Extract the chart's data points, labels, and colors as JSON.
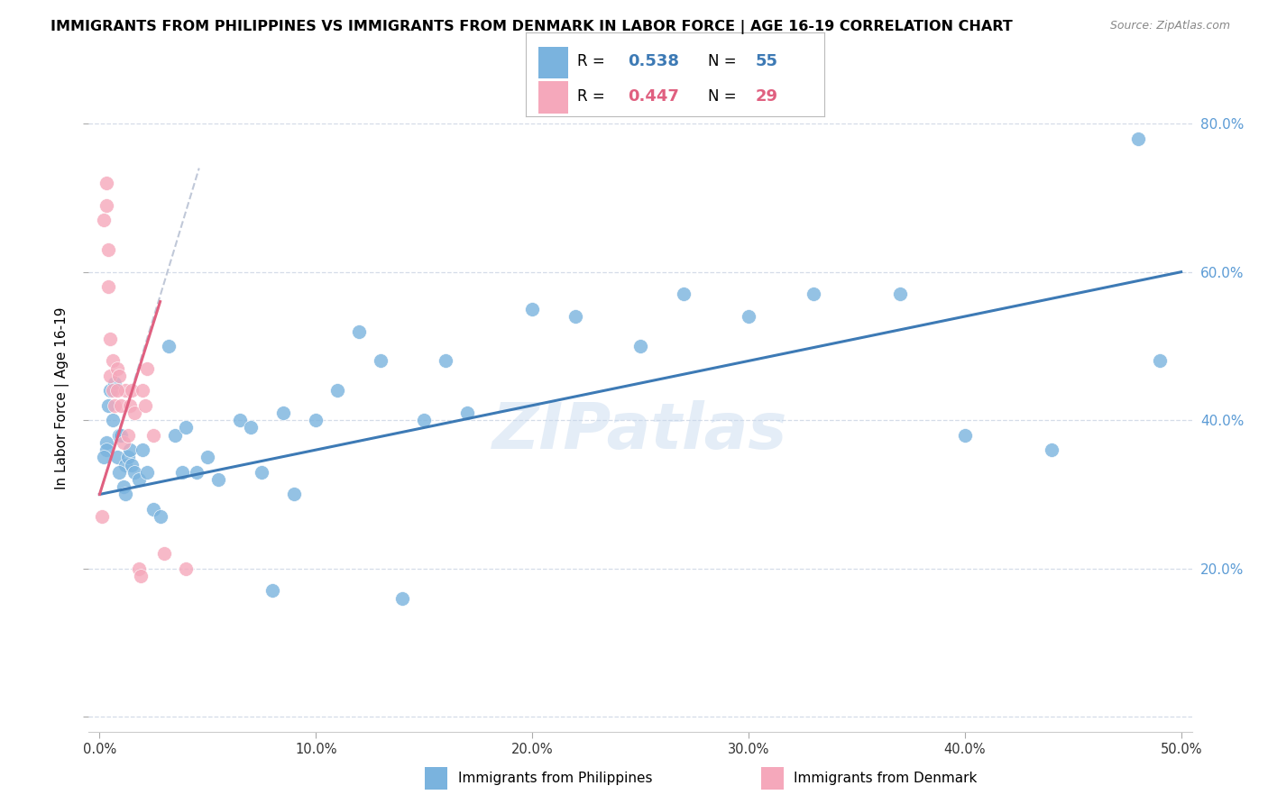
{
  "title": "IMMIGRANTS FROM PHILIPPINES VS IMMIGRANTS FROM DENMARK IN LABOR FORCE | AGE 16-19 CORRELATION CHART",
  "source": "Source: ZipAtlas.com",
  "ylabel": "In Labor Force | Age 16-19",
  "x_label_philippines": "Immigrants from Philippines",
  "x_label_denmark": "Immigrants from Denmark",
  "legend_blue_r": "0.538",
  "legend_blue_n": "55",
  "legend_pink_r": "0.447",
  "legend_pink_n": "29",
  "watermark": "ZIPatlas",
  "xlim_min": -0.005,
  "xlim_max": 0.505,
  "ylim_min": -0.02,
  "ylim_max": 0.88,
  "blue_color": "#7ab3de",
  "pink_color": "#f5a8bb",
  "blue_line_color": "#3d7ab5",
  "pink_line_color": "#e06080",
  "gray_dash_color": "#c0c8d8",
  "grid_color": "#d5dce8",
  "right_tick_color": "#5b9bd5",
  "yticks": [
    0.0,
    0.2,
    0.4,
    0.6,
    0.8
  ],
  "ytick_labels_right": [
    "",
    "20.0%",
    "40.0%",
    "60.0%",
    "80.0%"
  ],
  "xticks": [
    0.0,
    0.1,
    0.2,
    0.3,
    0.4,
    0.5
  ],
  "xtick_labels": [
    "0.0%",
    "10.0%",
    "20.0%",
    "30.0%",
    "40.0%",
    "50.0%"
  ],
  "blue_x": [
    0.003,
    0.004,
    0.005,
    0.006,
    0.008,
    0.009,
    0.01,
    0.011,
    0.012,
    0.013,
    0.014,
    0.015,
    0.016,
    0.018,
    0.02,
    0.022,
    0.025,
    0.028,
    0.032,
    0.035,
    0.038,
    0.04,
    0.045,
    0.05,
    0.055,
    0.065,
    0.07,
    0.075,
    0.08,
    0.085,
    0.09,
    0.1,
    0.11,
    0.12,
    0.13,
    0.14,
    0.15,
    0.16,
    0.17,
    0.2,
    0.22,
    0.25,
    0.27,
    0.3,
    0.33,
    0.37,
    0.4,
    0.44,
    0.48,
    0.49,
    0.003,
    0.007,
    0.009,
    0.012,
    0.002
  ],
  "blue_y": [
    0.37,
    0.42,
    0.44,
    0.4,
    0.35,
    0.38,
    0.38,
    0.31,
    0.34,
    0.35,
    0.36,
    0.34,
    0.33,
    0.32,
    0.36,
    0.33,
    0.28,
    0.27,
    0.5,
    0.38,
    0.33,
    0.39,
    0.33,
    0.35,
    0.32,
    0.4,
    0.39,
    0.33,
    0.17,
    0.41,
    0.3,
    0.4,
    0.44,
    0.52,
    0.48,
    0.16,
    0.4,
    0.48,
    0.41,
    0.55,
    0.54,
    0.5,
    0.57,
    0.54,
    0.57,
    0.57,
    0.38,
    0.36,
    0.78,
    0.48,
    0.36,
    0.45,
    0.33,
    0.3,
    0.35
  ],
  "pink_x": [
    0.001,
    0.002,
    0.003,
    0.003,
    0.004,
    0.005,
    0.005,
    0.006,
    0.006,
    0.007,
    0.008,
    0.009,
    0.01,
    0.011,
    0.012,
    0.013,
    0.014,
    0.015,
    0.016,
    0.018,
    0.019,
    0.02,
    0.021,
    0.022,
    0.025,
    0.03,
    0.04,
    0.004,
    0.008
  ],
  "pink_y": [
    0.27,
    0.67,
    0.72,
    0.69,
    0.63,
    0.51,
    0.46,
    0.48,
    0.44,
    0.42,
    0.47,
    0.46,
    0.42,
    0.37,
    0.44,
    0.38,
    0.42,
    0.44,
    0.41,
    0.2,
    0.19,
    0.44,
    0.42,
    0.47,
    0.38,
    0.22,
    0.2,
    0.58,
    0.44
  ],
  "blue_line_x": [
    0.0,
    0.5
  ],
  "blue_line_y": [
    0.3,
    0.6
  ],
  "pink_line_x": [
    0.0,
    0.028
  ],
  "pink_line_y": [
    0.3,
    0.56
  ],
  "gray_line_x": [
    0.0,
    0.046
  ],
  "gray_line_y": [
    0.3,
    0.74
  ]
}
